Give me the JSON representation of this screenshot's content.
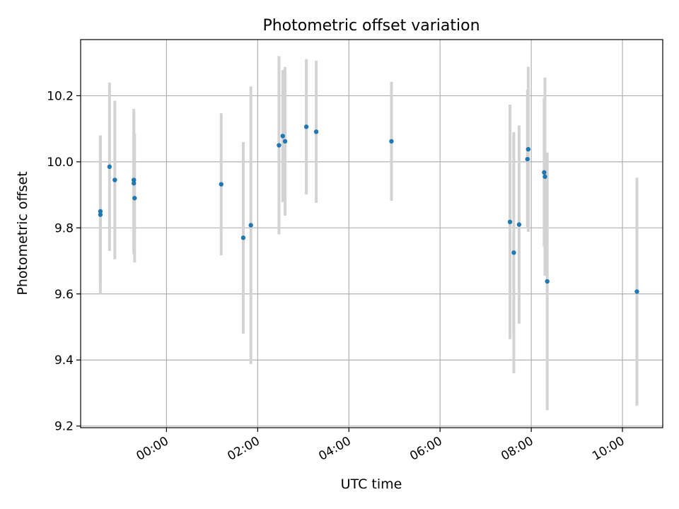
{
  "chart_data": {
    "type": "scatter",
    "title": "Photometric offset variation",
    "xlabel": "UTC time",
    "ylabel": "Photometric offset",
    "x_unit": "hours UTC (times before 00:00 belong to the previous evening)",
    "xlim": [
      "-01:53",
      "10:53"
    ],
    "ylim": [
      9.195,
      10.37
    ],
    "x_ticks": [
      "00:00",
      "02:00",
      "04:00",
      "06:00",
      "08:00",
      "10:00"
    ],
    "y_ticks": [
      "9.2",
      "9.4",
      "9.6",
      "9.8",
      "10.0",
      "10.2"
    ],
    "grid": true,
    "colors": {
      "marker": "#1f77b4",
      "errorbar": "#d3d3d3"
    },
    "series": [
      {
        "points": [
          {
            "time": "-01:27",
            "y": 9.85,
            "err": 0.23
          },
          {
            "time": "-01:27",
            "y": 9.84,
            "err": 0.24
          },
          {
            "time": "-01:15",
            "y": 9.985,
            "err": 0.255
          },
          {
            "time": "-01:08",
            "y": 9.945,
            "err": 0.24
          },
          {
            "time": "-00:43",
            "y": 9.945,
            "err": 0.215
          },
          {
            "time": "-00:43",
            "y": 9.935,
            "err": 0.215
          },
          {
            "time": "-00:42",
            "y": 9.89,
            "err": 0.195
          },
          {
            "time": "01:12",
            "y": 9.932,
            "err": 0.215
          },
          {
            "time": "01:41",
            "y": 9.77,
            "err": 0.29
          },
          {
            "time": "01:51",
            "y": 9.808,
            "err": 0.42
          },
          {
            "time": "02:28",
            "y": 10.05,
            "err": 0.27
          },
          {
            "time": "02:33",
            "y": 10.078,
            "err": 0.2
          },
          {
            "time": "02:36",
            "y": 10.062,
            "err": 0.225
          },
          {
            "time": "03:04",
            "y": 10.106,
            "err": 0.205
          },
          {
            "time": "03:17",
            "y": 10.091,
            "err": 0.215
          },
          {
            "time": "04:56",
            "y": 10.062,
            "err": 0.18
          },
          {
            "time": "07:32",
            "y": 9.818,
            "err": 0.355
          },
          {
            "time": "07:37",
            "y": 9.725,
            "err": 0.365
          },
          {
            "time": "07:44",
            "y": 9.81,
            "err": 0.3
          },
          {
            "time": "07:55",
            "y": 10.008,
            "err": 0.21
          },
          {
            "time": "07:56",
            "y": 10.038,
            "err": 0.25
          },
          {
            "time": "08:17",
            "y": 9.968,
            "err": 0.225
          },
          {
            "time": "08:18",
            "y": 9.955,
            "err": 0.3
          },
          {
            "time": "08:21",
            "y": 9.638,
            "err": 0.39
          },
          {
            "time": "10:19",
            "y": 9.607,
            "err": 0.345
          }
        ]
      }
    ]
  }
}
